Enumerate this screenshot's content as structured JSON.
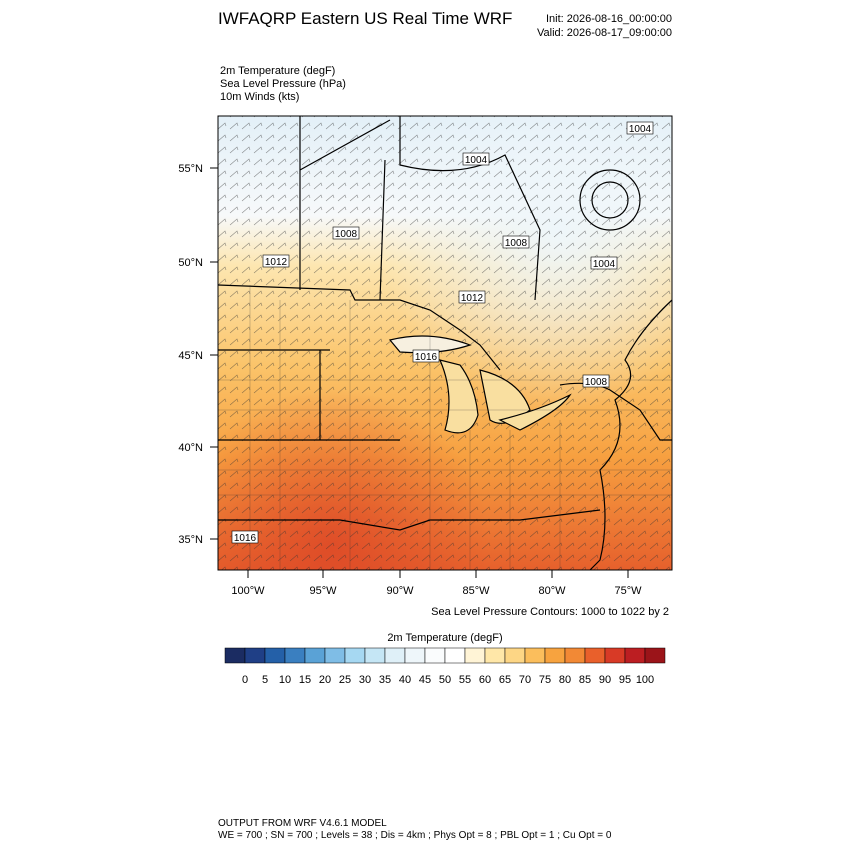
{
  "header": {
    "title": "IWFAQRP Eastern US Real Time WRF",
    "init": "Init: 2026-08-16_00:00:00",
    "valid": "Valid: 2026-08-17_09:00:00"
  },
  "fields": [
    "2m Temperature   (degF)",
    "Sea Level Pressure   (hPa)",
    "10m Winds   (kts)"
  ],
  "map": {
    "lat_labels": [
      "55°N",
      "50°N",
      "45°N",
      "40°N",
      "35°N"
    ],
    "lon_labels": [
      "100°W",
      "95°W",
      "90°W",
      "85°W",
      "80°W",
      "75°W"
    ],
    "contour_labels": [
      "1004",
      "1004",
      "1008",
      "1008",
      "1004",
      "1012",
      "1012",
      "1016",
      "1008",
      "1016"
    ],
    "caption": "Sea Level Pressure Contours: 1000 to 1022 by 2"
  },
  "colorbar": {
    "title": "2m Temperature  (degF)",
    "colors": [
      "#1b2c62",
      "#1f3f86",
      "#2460a8",
      "#3a7fc0",
      "#5aa2d6",
      "#7fbde6",
      "#a6d8f2",
      "#c5e6f5",
      "#dff0f8",
      "#eef6fa",
      "#fafcfd",
      "#ffffff",
      "#fff4d6",
      "#ffe7a8",
      "#fdd685",
      "#fbbe5c",
      "#f7a33f",
      "#f28935",
      "#e9602b",
      "#d83a26",
      "#bc1e22",
      "#9b1419"
    ],
    "labels": [
      0,
      5,
      10,
      15,
      20,
      25,
      30,
      35,
      40,
      45,
      50,
      55,
      60,
      65,
      70,
      75,
      80,
      85,
      90,
      95,
      100
    ]
  },
  "footer": {
    "line1": "OUTPUT FROM WRF V4.6.1 MODEL",
    "line2": "WE = 700 ; SN = 700 ; Levels = 38 ; Dis = 4km ; Phys Opt = 8 ; PBL Opt = 1 ; Cu Opt = 0"
  }
}
